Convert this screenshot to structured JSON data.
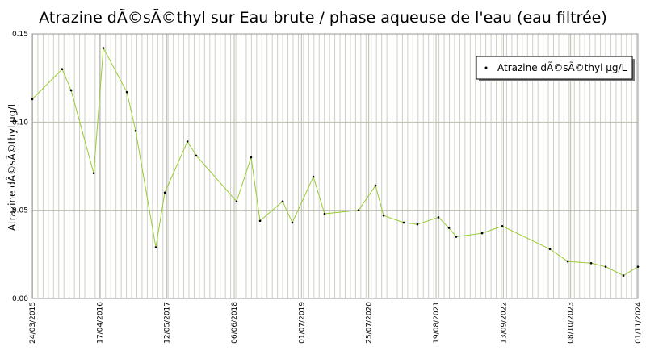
{
  "chart_data": {
    "type": "line",
    "title": "Atrazine dÃ©sÃ©thyl sur Eau brute / phase aqueuse de l'eau (eau filtrée)",
    "y_label": "Atrazine dÃ©sÃ©thyl µg/L",
    "x": [
      "2015-03-24",
      "2015-09-13",
      "2015-11-04",
      "2016-03-14",
      "2016-05-09",
      "2016-09-22",
      "2016-11-12",
      "2017-03-09",
      "2017-04-30",
      "2017-09-08",
      "2017-10-29",
      "2018-06-20",
      "2018-09-12",
      "2018-11-03",
      "2019-03-14",
      "2019-05-09",
      "2019-09-08",
      "2019-11-12",
      "2020-05-27",
      "2020-09-02",
      "2020-10-19",
      "2021-02-13",
      "2021-05-03",
      "2021-09-02",
      "2021-11-02",
      "2021-12-14",
      "2022-05-13",
      "2022-09-07",
      "2023-06-10",
      "2023-09-21",
      "2024-02-04",
      "2024-04-28",
      "2024-08-09",
      "2024-11-01"
    ],
    "series": [
      {
        "name": "Atrazine dÃ©sÃ©thyl µg/L",
        "color": "#99cc33",
        "marker_color": "#000000",
        "values": [
          0.113,
          0.13,
          0.118,
          0.071,
          0.142,
          0.117,
          0.095,
          0.029,
          0.06,
          0.089,
          0.081,
          0.055,
          0.08,
          0.044,
          0.055,
          0.043,
          0.069,
          0.048,
          0.05,
          0.064,
          0.047,
          0.043,
          0.042,
          0.046,
          0.04,
          0.035,
          0.037,
          0.041,
          0.028,
          0.021,
          0.02,
          0.018,
          0.013,
          0.018
        ]
      }
    ],
    "xlim": [
      "2015-03-24",
      "2024-11-01"
    ],
    "xticks": [
      {
        "value": "2015-03-24",
        "label": "24/03/2015"
      },
      {
        "value": "2016-04-17",
        "label": "17/04/2016"
      },
      {
        "value": "2017-05-12",
        "label": "12/05/2017"
      },
      {
        "value": "2018-06-06",
        "label": "06/06/2018"
      },
      {
        "value": "2019-07-01",
        "label": "01/07/2019"
      },
      {
        "value": "2020-07-25",
        "label": "25/07/2020"
      },
      {
        "value": "2021-08-19",
        "label": "19/08/2021"
      },
      {
        "value": "2022-09-13",
        "label": "13/09/2022"
      },
      {
        "value": "2023-10-08",
        "label": "08/10/2023"
      },
      {
        "value": "2024-11-01",
        "label": "01/11/2024"
      }
    ],
    "ylim": [
      0,
      0.15
    ],
    "yticks": [
      {
        "value": 0,
        "label": "0.00"
      },
      0.05,
      {
        "value": 0.1,
        "label": "0.10"
      },
      0.15
    ],
    "grid": true,
    "legend": "upper right"
  }
}
